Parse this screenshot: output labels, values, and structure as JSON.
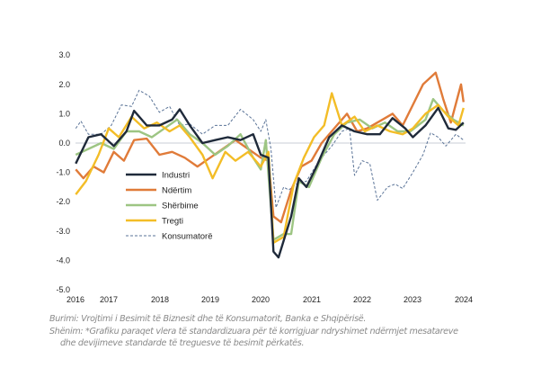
{
  "chart_data": {
    "type": "line",
    "ylim": [
      -5,
      3
    ],
    "yticks": [
      "3.0",
      "2.0",
      "1.0",
      "0.0",
      "-1.0",
      "-2.0",
      "-3.0",
      "-4.0",
      "-5.0"
    ],
    "xticks": [
      "2016",
      "2017",
      "2018",
      "2019",
      "2020",
      "2021",
      "2022",
      "2023",
      "2024"
    ],
    "grid": false,
    "legend": "center-left",
    "colors": {
      "Industri": "#1f2a3a",
      "Ndërtim": "#e07b39",
      "Shërbime": "#9dc583",
      "Tregti": "#f3bd27",
      "Konsumatorë": "#5a7397"
    },
    "series": [
      {
        "name": "Industri",
        "x": [
          2016.35,
          2016.6,
          2016.85,
          2017.1,
          2017.35,
          2017.5,
          2017.75,
          2018.0,
          2018.25,
          2018.4,
          2018.6,
          2018.85,
          2019.1,
          2019.35,
          2019.6,
          2019.85,
          2020.0,
          2020.15,
          2020.25,
          2020.35,
          2020.6,
          2020.75,
          2020.9,
          2021.1,
          2021.35,
          2021.6,
          2021.85,
          2022.1,
          2022.35,
          2022.6,
          2022.85,
          2023.0,
          2023.25,
          2023.5,
          2023.7,
          2023.85,
          2024.0
        ],
        "y": [
          -0.7,
          0.2,
          0.3,
          -0.1,
          0.4,
          1.1,
          0.6,
          0.6,
          0.8,
          1.15,
          0.6,
          0.0,
          0.1,
          0.2,
          0.1,
          0.3,
          -0.4,
          -0.5,
          -3.7,
          -3.9,
          -2.5,
          -1.2,
          -1.5,
          -0.8,
          0.2,
          0.6,
          0.4,
          0.3,
          0.3,
          0.85,
          0.5,
          0.2,
          0.6,
          1.2,
          0.5,
          0.45,
          0.7
        ]
      },
      {
        "name": "Ndërtim",
        "x": [
          2016.35,
          2016.5,
          2016.7,
          2016.9,
          2017.1,
          2017.3,
          2017.5,
          2017.75,
          2018.0,
          2018.25,
          2018.5,
          2018.75,
          2019.0,
          2019.25,
          2019.5,
          2019.75,
          2020.0,
          2020.15,
          2020.25,
          2020.4,
          2020.6,
          2020.8,
          2021.0,
          2021.2,
          2021.5,
          2021.7,
          2021.9,
          2022.1,
          2022.4,
          2022.6,
          2022.8,
          2023.0,
          2023.2,
          2023.45,
          2023.6,
          2023.75,
          2023.95,
          2024.0
        ],
        "y": [
          -0.9,
          -1.2,
          -0.8,
          -1.0,
          -0.3,
          -0.6,
          0.1,
          0.15,
          -0.4,
          -0.3,
          -0.5,
          -0.8,
          -0.5,
          -0.2,
          0.1,
          -0.2,
          -0.5,
          -0.6,
          -2.5,
          -2.7,
          -1.6,
          -0.8,
          -0.6,
          0.0,
          0.6,
          1.0,
          0.4,
          0.5,
          0.8,
          1.0,
          0.6,
          1.3,
          2.0,
          2.4,
          1.5,
          0.7,
          2.0,
          1.4
        ]
      },
      {
        "name": "Shërbime",
        "x": [
          2016.35,
          2016.6,
          2016.85,
          2017.1,
          2017.35,
          2017.6,
          2017.85,
          2018.1,
          2018.35,
          2018.6,
          2018.85,
          2019.1,
          2019.35,
          2019.6,
          2019.85,
          2020.0,
          2020.1,
          2020.25,
          2020.45,
          2020.6,
          2020.75,
          2020.95,
          2021.2,
          2021.45,
          2021.7,
          2021.95,
          2022.2,
          2022.45,
          2022.7,
          2022.95,
          2023.25,
          2023.4,
          2023.6,
          2023.8,
          2024.0
        ],
        "y": [
          -0.4,
          -0.2,
          0.0,
          -0.2,
          0.4,
          0.4,
          0.2,
          0.5,
          0.8,
          0.3,
          0.0,
          -0.4,
          -0.1,
          0.3,
          -0.5,
          -0.9,
          0.1,
          -3.3,
          -3.1,
          -3.1,
          -1.3,
          -1.5,
          -0.5,
          0.3,
          0.7,
          0.8,
          0.5,
          0.7,
          0.4,
          0.4,
          0.8,
          1.5,
          1.1,
          0.8,
          0.6
        ]
      },
      {
        "name": "Tregti",
        "x": [
          2016.35,
          2016.55,
          2016.8,
          2017.0,
          2017.2,
          2017.45,
          2017.7,
          2017.95,
          2018.2,
          2018.4,
          2018.6,
          2018.85,
          2019.05,
          2019.3,
          2019.5,
          2019.75,
          2020.0,
          2020.15,
          2020.25,
          2020.45,
          2020.65,
          2020.85,
          2021.05,
          2021.25,
          2021.4,
          2021.6,
          2021.85,
          2022.05,
          2022.3,
          2022.55,
          2022.8,
          2023.0,
          2023.25,
          2023.5,
          2023.7,
          2023.9,
          2024.0
        ],
        "y": [
          -1.75,
          -1.3,
          -0.4,
          0.5,
          0.2,
          0.9,
          0.5,
          0.7,
          0.4,
          0.6,
          0.2,
          -0.4,
          -1.2,
          -0.3,
          -0.6,
          -0.3,
          -0.8,
          -0.3,
          -3.4,
          -3.2,
          -1.4,
          -0.5,
          0.2,
          0.6,
          1.7,
          0.6,
          0.9,
          0.4,
          0.6,
          0.4,
          0.3,
          0.5,
          1.0,
          1.3,
          0.9,
          0.6,
          1.2
        ]
      },
      {
        "name": "Konsumatorë",
        "dashed": true,
        "x": [
          2016.35,
          2016.45,
          2016.6,
          2016.85,
          2017.05,
          2017.25,
          2017.45,
          2017.6,
          2017.8,
          2018.0,
          2018.2,
          2018.4,
          2018.6,
          2018.85,
          2019.1,
          2019.35,
          2019.6,
          2019.85,
          2020.0,
          2020.1,
          2020.2,
          2020.3,
          2020.45,
          2020.55,
          2020.7,
          2020.9,
          2021.15,
          2021.4,
          2021.6,
          2021.75,
          2021.85,
          2022.0,
          2022.15,
          2022.3,
          2022.5,
          2022.65,
          2022.8,
          2023.0,
          2023.2,
          2023.35,
          2023.5,
          2023.65,
          2023.85,
          2024.0
        ],
        "y": [
          0.5,
          0.75,
          0.3,
          0.3,
          0.6,
          1.3,
          1.25,
          1.8,
          1.6,
          1.05,
          1.25,
          0.6,
          0.65,
          0.3,
          0.6,
          0.6,
          1.15,
          0.8,
          0.4,
          0.8,
          -0.2,
          -2.2,
          -1.5,
          -1.6,
          -1.4,
          -1.3,
          -0.6,
          -0.1,
          0.4,
          0.5,
          -1.1,
          -0.6,
          -0.7,
          -1.95,
          -1.5,
          -1.4,
          -1.55,
          -1.0,
          -0.4,
          0.35,
          0.2,
          -0.1,
          0.3,
          0.1
        ]
      }
    ]
  },
  "notes": {
    "source": "Burimi: Vrojtimi i Besimit të Biznesit dhe të Konsumatorit, Banka e Shqipërisë.",
    "note_line1": "Shënim: *Grafiku paraqet vlera të standardizuara për të korrigjuar ndryshimet ndërmjet mesatareve",
    "note_line2": "dhe devijimeve standarde të treguesve të besimit përkatës."
  }
}
